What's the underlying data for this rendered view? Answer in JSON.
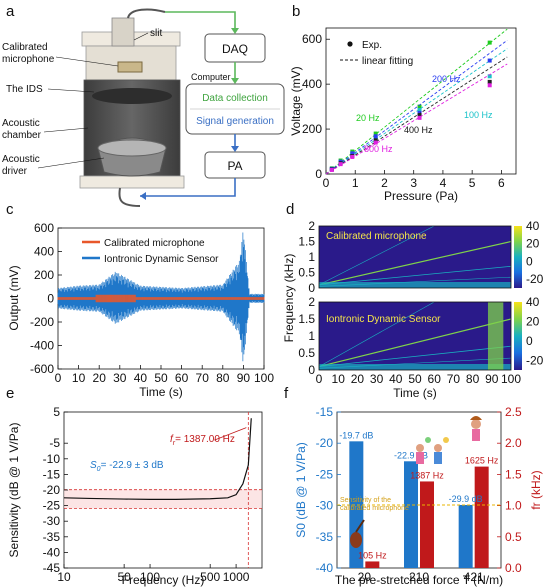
{
  "panels": {
    "a": {
      "label": "a",
      "slit": "slit",
      "calib_line1": "Calibrated",
      "calib_line2": "microphone",
      "ids": "The IDS",
      "chamber_line1": "Acoustic",
      "chamber_line2": "chamber",
      "driver_line1": "Acoustic",
      "driver_line2": "driver",
      "daq": "DAQ",
      "computer": "Computer",
      "data_collection": "Data collection",
      "signal_generation": "Signal generation",
      "pa": "PA",
      "colors": {
        "green": "#5cb85c",
        "blue": "#3a6fc4",
        "body": "#e8e4dc",
        "dark": "#444"
      }
    },
    "b": {
      "label": "b",
      "legend_exp": "Exp.",
      "legend_fit": "linear fitting",
      "freq_labels": [
        "20 Hz",
        "100 Hz",
        "200 Hz",
        "400 Hz",
        "800 Hz"
      ]
    },
    "c": {
      "label": "c",
      "legend_mic": "Calibrated microphone",
      "legend_ids": "Iontronic Dynamic Sensor"
    },
    "d": {
      "label": "d",
      "ylabel": "Frequency (kHz)",
      "top_title": "Calibrated microphone",
      "bottom_title": "Iontronic Dynamic Sensor",
      "yticks": [
        "2",
        "1.5",
        "1",
        "0.5",
        "0"
      ],
      "cbar_ticks": [
        "40",
        "20",
        "0",
        "-20"
      ],
      "xticks": [
        "0",
        "10",
        "20",
        "30",
        "40",
        "50",
        "60",
        "70",
        "80",
        "90",
        "100"
      ],
      "xlabel": "Time (s)"
    },
    "e": {
      "label": "e",
      "annot_fr": "= 1387.00 Hz",
      "annot_fr_sym": "f",
      "annot_fr_sub": "r",
      "annot_s0": "= -22.9 ± 3 dB",
      "annot_s0_sym": "S",
      "annot_s0_sub": "0"
    },
    "f": {
      "label": "f",
      "bar_labels_blue": [
        "-19.7 dB",
        "-22.9 dB",
        "-29.9 dB"
      ],
      "bar_labels_red": [
        "105 Hz",
        "1387 Hz",
        "1625 Hz"
      ],
      "sens_note_line1": "Sensitivity of the",
      "sens_note_line2": "calibrated microphone"
    }
  },
  "chart_data": [
    {
      "panel": "b",
      "type": "scatter",
      "xlabel": "Pressure (Pa)",
      "ylabel": "Voltage (mV)",
      "xlim": [
        0,
        6.5
      ],
      "ylim": [
        0,
        650
      ],
      "xticks": [
        0,
        1,
        2,
        3,
        4,
        5,
        6
      ],
      "yticks": [
        0,
        200,
        400,
        600
      ],
      "legend": "top-left",
      "series": [
        {
          "name": "20 Hz",
          "color": "#1ecb1e",
          "slope": 104,
          "x": [
            0.2,
            0.5,
            0.9,
            1.7,
            3.2,
            5.6
          ],
          "y": [
            25,
            60,
            100,
            180,
            300,
            585
          ]
        },
        {
          "name": "100 Hz",
          "color": "#19c2c9",
          "slope": 90,
          "x": [
            0.2,
            0.5,
            0.9,
            1.7,
            3.2,
            5.6
          ],
          "y": [
            22,
            52,
            88,
            160,
            285,
            435
          ]
        },
        {
          "name": "200 Hz",
          "color": "#2a3ef0",
          "slope": 96,
          "x": [
            0.2,
            0.5,
            0.9,
            1.7,
            3.2,
            5.6
          ],
          "y": [
            23,
            55,
            92,
            168,
            272,
            505
          ]
        },
        {
          "name": "400 Hz",
          "color": "#222222",
          "slope": 84,
          "x": [
            0.2,
            0.5,
            0.9,
            1.7,
            3.2,
            5.6
          ],
          "y": [
            20,
            48,
            80,
            150,
            262,
            410
          ]
        },
        {
          "name": "800 Hz",
          "color": "#e020e0",
          "slope": 79,
          "x": [
            0.2,
            0.5,
            0.9,
            1.7,
            3.2,
            5.6
          ],
          "y": [
            18,
            44,
            76,
            140,
            250,
            395
          ]
        }
      ]
    },
    {
      "panel": "c",
      "type": "line",
      "xlabel": "Time (s)",
      "ylabel": "Output (mV)",
      "xlim": [
        0,
        100
      ],
      "ylim": [
        -600,
        600
      ],
      "xticks": [
        0,
        10,
        20,
        30,
        40,
        50,
        60,
        70,
        80,
        90,
        100
      ],
      "yticks": [
        600,
        400,
        200,
        0,
        -200,
        -400,
        -600
      ],
      "legend": "top-center",
      "series": [
        {
          "name": "Calibrated microphone",
          "color": "#e8572a",
          "amplitude_mV": 20
        },
        {
          "name": "Iontronic Dynamic Sensor",
          "color": "#1f77c9",
          "envelope_t": [
            0,
            10,
            20,
            28,
            40,
            60,
            80,
            88,
            90,
            93,
            100
          ],
          "envelope_mV": [
            90,
            110,
            120,
            230,
            110,
            90,
            120,
            320,
            600,
            40,
            40
          ]
        }
      ]
    },
    {
      "panel": "d",
      "type": "heatmap",
      "xlim": [
        0,
        100
      ],
      "ylim": [
        0,
        2
      ],
      "clim": [
        -30,
        40
      ]
    },
    {
      "panel": "e",
      "type": "line",
      "xlabel": "Frequency (Hz)",
      "ylabel": "Sensitivity (dB @ 1 V/Pa)",
      "xscale": "log",
      "xlim": [
        10,
        2000
      ],
      "ylim": [
        -45,
        5
      ],
      "xticks": [
        10,
        50,
        100,
        500,
        1000
      ],
      "yticks": [
        5,
        -5,
        -10,
        -15,
        -20,
        -25,
        -30,
        -35,
        -40,
        -45
      ],
      "x": [
        10,
        20,
        50,
        100,
        200,
        500,
        800,
        1000,
        1200,
        1387,
        1500
      ],
      "y": [
        -22.5,
        -22.7,
        -22.9,
        -23,
        -23,
        -22.8,
        -22.5,
        -21.5,
        -18,
        -12,
        3
      ],
      "band": [
        -25.9,
        -19.9
      ],
      "fr": 1387
    },
    {
      "panel": "f",
      "type": "bar",
      "xlabel": "The pre-stretched force T (N/m)",
      "ylabel": "S0 (dB @ 1 V/Pa)",
      "ylabel_right": "fr (kHz)",
      "categories": [
        "20",
        "210",
        "421"
      ],
      "ylim": [
        -40,
        -15
      ],
      "ylim_right": [
        0,
        2.5
      ],
      "yticks": [
        -15,
        -20,
        -25,
        -30,
        -35,
        -40
      ],
      "yticks_right": [
        2.5,
        2.0,
        1.5,
        1.0,
        0.5,
        0
      ],
      "series": [
        {
          "name": "S0",
          "color": "#1f77c9",
          "values": [
            -19.7,
            -22.9,
            -29.9
          ]
        },
        {
          "name": "fr",
          "color": "#c0191b",
          "values": [
            0.105,
            1.387,
            1.625
          ]
        }
      ],
      "reference_line": -29.9
    }
  ]
}
